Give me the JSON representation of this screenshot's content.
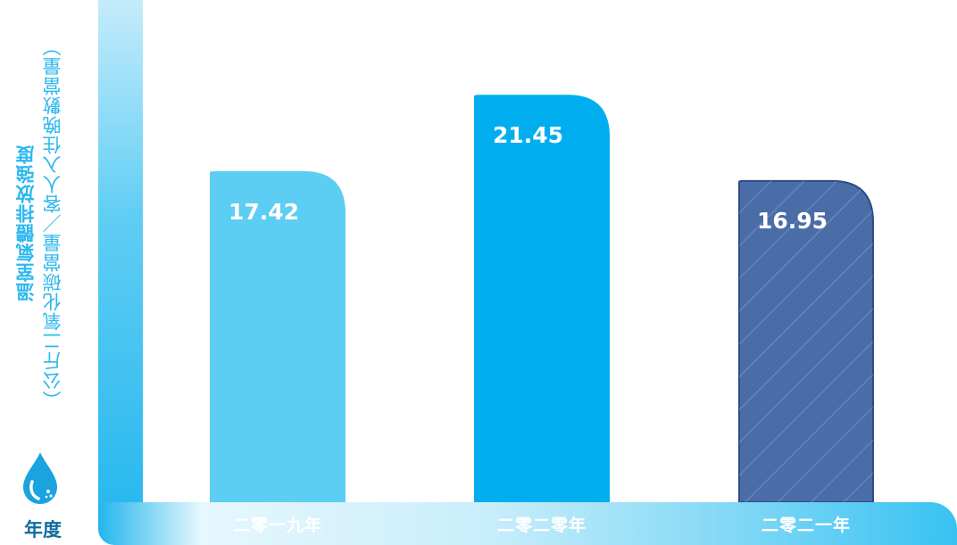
{
  "chart_data": {
    "type": "bar",
    "title": "",
    "ylabel": "溫室氣體排放強度",
    "ylabel_unit": "（公斤二氧化碳當量／客人入住晚數當量）",
    "xlabel": "年度",
    "categories": [
      "二零一九年",
      "二零二零年",
      "二零二一年"
    ],
    "values": [
      17.42,
      21.45,
      16.95
    ],
    "value_labels": [
      "17.42",
      "21.45",
      "16.95"
    ],
    "ylim": [
      0,
      26.5
    ],
    "grid": false,
    "legend": "none",
    "colors": [
      "#5ccdf3",
      "#00aef0",
      "#4a6da8"
    ],
    "edge_colors": [
      "#5ccdf3",
      "#00aef0",
      "#2c4d86"
    ],
    "hatched": [
      false,
      false,
      true
    ]
  },
  "icons": {
    "drop": "water-drop-icon"
  }
}
